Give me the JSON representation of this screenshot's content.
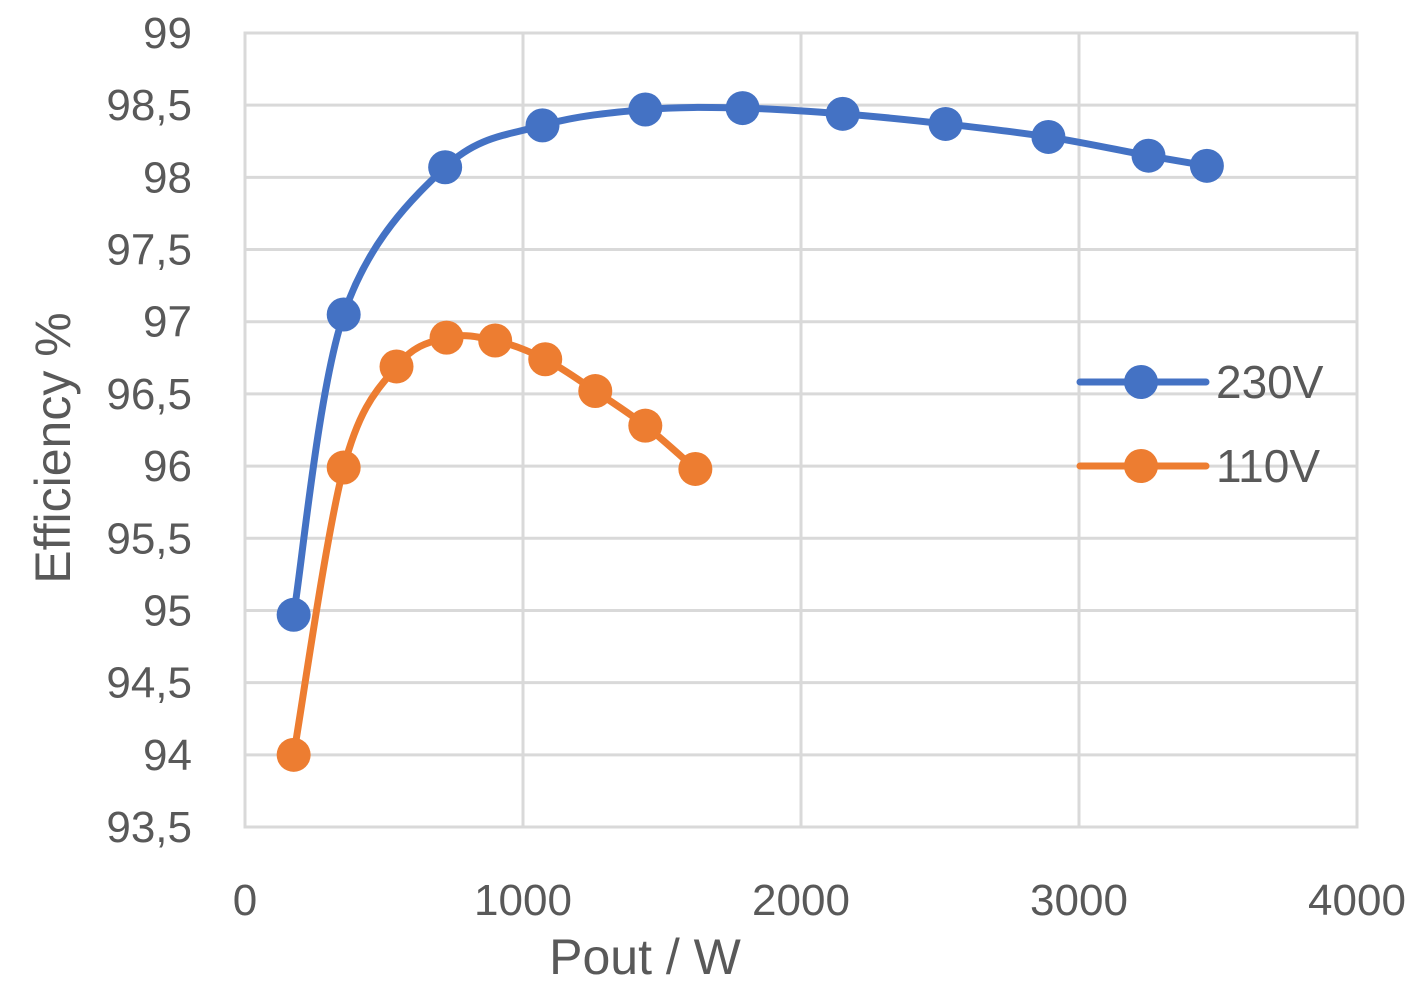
{
  "chart_data": {
    "type": "line",
    "xlabel": "Pout / W",
    "ylabel": "Efficiency %",
    "xlim": [
      0,
      4000
    ],
    "ylim": [
      93.5,
      99
    ],
    "x_ticks": [
      0,
      1000,
      2000,
      3000,
      4000
    ],
    "x_tick_labels": [
      "0",
      "1000",
      "2000",
      "3000",
      "4000"
    ],
    "y_ticks": [
      93.5,
      94,
      94.5,
      95,
      95.5,
      96,
      96.5,
      97,
      97.5,
      98,
      98.5,
      99
    ],
    "y_tick_labels": [
      "93,5",
      "94",
      "94,5",
      "95",
      "95,5",
      "96",
      "96,5",
      "97",
      "97,5",
      "98",
      "98,5",
      "99"
    ],
    "grid": true,
    "legend_position": "right",
    "series": [
      {
        "name": "230V",
        "color": "#4472c4",
        "x": [
          175,
          355,
          720,
          1070,
          1440,
          1790,
          2150,
          2520,
          2890,
          3250,
          3460
        ],
        "y": [
          94.97,
          97.05,
          98.07,
          98.36,
          98.47,
          98.48,
          98.44,
          98.37,
          98.28,
          98.15,
          98.08
        ]
      },
      {
        "name": "110V",
        "color": "#ed7d31",
        "x": [
          175,
          355,
          545,
          725,
          900,
          1080,
          1260,
          1440,
          1620
        ],
        "y": [
          94.0,
          95.99,
          96.69,
          96.89,
          96.87,
          96.74,
          96.52,
          96.28,
          95.98
        ]
      }
    ]
  }
}
